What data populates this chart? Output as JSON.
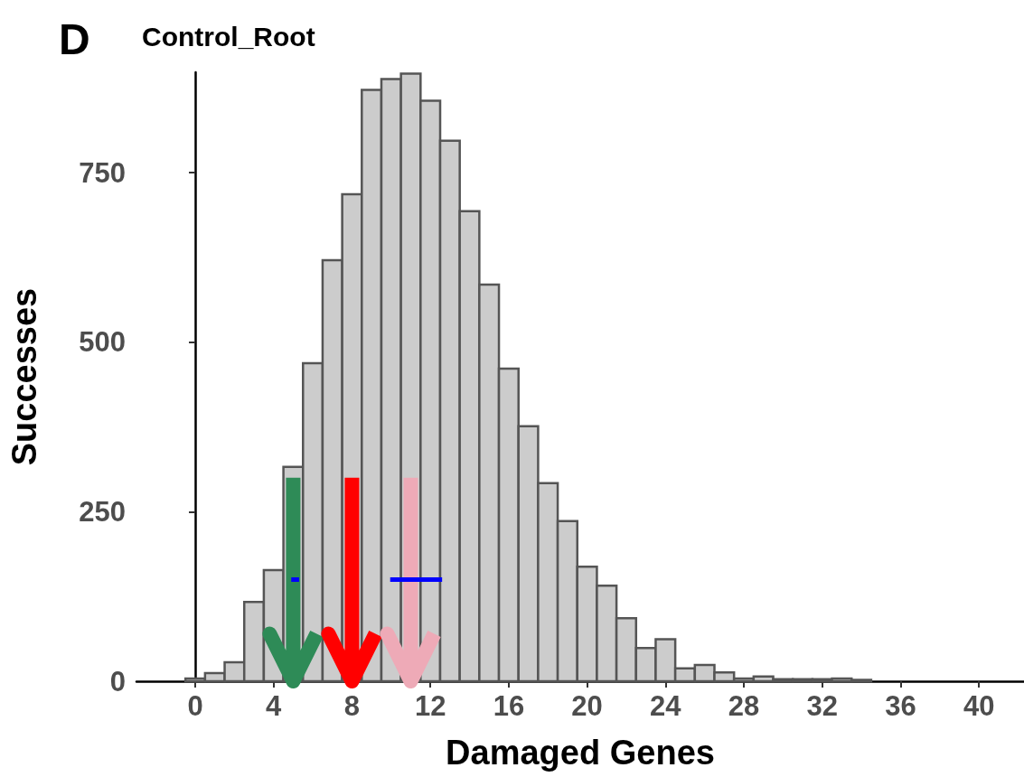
{
  "chart_data": {
    "type": "histogram",
    "title": "Control_Root",
    "xlabel": "Damaged Genes",
    "ylabel": "Successes",
    "annotations": [
      "D"
    ],
    "xlim": [
      -3,
      42.3
    ],
    "xticks": [
      0,
      4,
      8,
      12,
      16,
      20,
      24,
      28,
      32,
      36,
      40
    ],
    "ylim": [
      0,
      898
    ],
    "yticks": [
      0,
      250,
      500,
      750
    ],
    "grid": false,
    "series": [
      {
        "color": "#cccccc",
        "bins": [
          -0.5,
          0.5,
          1.5,
          2.5,
          3.5,
          4.5,
          5.5,
          6.5,
          7.5,
          8.5,
          9.5,
          10.5,
          11.5,
          12.5,
          13.5,
          14.5,
          15.5,
          16.5,
          17.5,
          18.5,
          19.5,
          20.5,
          21.5,
          22.5,
          23.5,
          24.5,
          25.5,
          26.5,
          27.5,
          28.5,
          29.5,
          30.5,
          31.5,
          32.5,
          33.5,
          34.5
        ],
        "values": [
          4,
          12,
          28,
          117,
          164,
          316,
          469,
          621,
          718,
          872,
          888,
          896,
          856,
          797,
          693,
          585,
          461,
          376,
          292,
          236,
          169,
          141,
          93,
          49,
          62,
          19,
          24,
          13,
          4,
          7,
          3,
          3,
          3,
          4,
          2
        ]
      },
      {
        "type": "line",
        "color": "#2e8b57",
        "x": [
          5,
          5,
          3.8,
          5,
          6.2
        ],
        "values": [
          300,
          0,
          70,
          0,
          70
        ]
      },
      {
        "type": "line",
        "color": "#ff0000",
        "x": [
          8,
          8,
          6.8,
          8,
          9.2
        ],
        "values": [
          300,
          0,
          70,
          0,
          70
        ]
      },
      {
        "type": "line",
        "color": "#eeaab7",
        "x": [
          11,
          11,
          9.8,
          11,
          12.2
        ],
        "values": [
          300,
          0,
          70,
          0,
          70
        ]
      },
      {
        "type": "line",
        "color": "#0000ff",
        "x": [
          4.9,
          5.3
        ],
        "values": [
          150,
          150
        ]
      },
      {
        "type": "line",
        "color": "#0000ff",
        "x": [
          9.95,
          12.6
        ],
        "values": [
          150,
          150
        ]
      }
    ]
  }
}
